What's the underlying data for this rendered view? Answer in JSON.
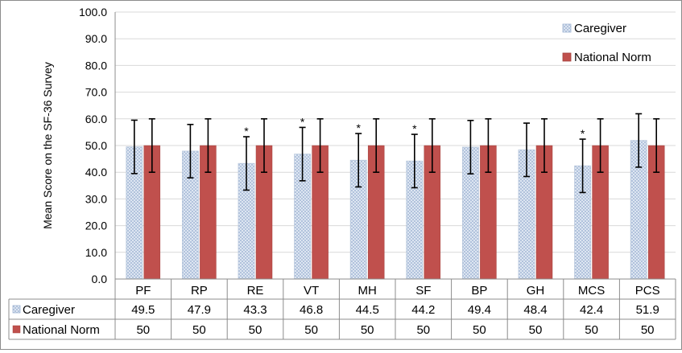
{
  "chart_data": {
    "type": "bar",
    "title": "",
    "xlabel": "",
    "ylabel": "Mean Score on the SF-36 Survey",
    "ylim": [
      0,
      100
    ],
    "yticks": [
      "0.0",
      "10.0",
      "20.0",
      "30.0",
      "40.0",
      "50.0",
      "60.0",
      "70.0",
      "80.0",
      "90.0",
      "100.0"
    ],
    "grid": true,
    "legend_position": "top-right",
    "categories": [
      "PF",
      "RP",
      "RE",
      "VT",
      "MH",
      "SF",
      "BP",
      "GH",
      "MCS",
      "PCS"
    ],
    "series": [
      {
        "name": "Caregiver",
        "color": "#dbe5f1",
        "pattern": "crosshatch",
        "values": [
          49.5,
          47.9,
          43.3,
          46.8,
          44.5,
          44.2,
          49.4,
          48.4,
          42.4,
          51.9
        ],
        "values_text": [
          "49.5",
          "47.9",
          "43.3",
          "46.8",
          "44.5",
          "44.2",
          "49.4",
          "48.4",
          "42.4",
          "51.9"
        ],
        "error": [
          10,
          10,
          10,
          10,
          10,
          10,
          10,
          10,
          10,
          10
        ]
      },
      {
        "name": "National Norm",
        "color": "#c0504d",
        "values": [
          50,
          50,
          50,
          50,
          50,
          50,
          50,
          50,
          50,
          50
        ],
        "values_text": [
          "50",
          "50",
          "50",
          "50",
          "50",
          "50",
          "50",
          "50",
          "50",
          "50"
        ],
        "error": [
          10,
          10,
          10,
          10,
          10,
          10,
          10,
          10,
          10,
          10
        ]
      }
    ],
    "significance_marker": "*",
    "significant_categories": [
      "RE",
      "VT",
      "MH",
      "SF",
      "MCS"
    ],
    "data_table": true
  }
}
